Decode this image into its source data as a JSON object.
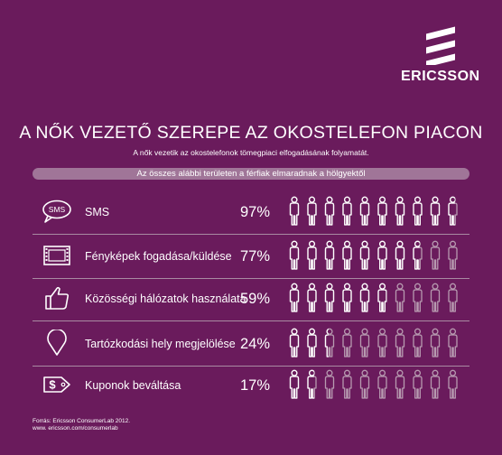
{
  "brand": {
    "name": "ERICSSON"
  },
  "header": {
    "title": "A NŐK VEZETŐ SZEREPE AZ OKOSTELEFON PIACON",
    "subtitle": "A nők vezetik az okostelefonok tömegpiaci elfogadásának folyamatát.",
    "band_text": "Az összes alábbi területen a férfiak elmaradnak a hölgyektől"
  },
  "rows": [
    {
      "icon": "sms-bubble-icon",
      "sms_text": "SMS",
      "label": "SMS",
      "percent": "97%",
      "filled": 9.7
    },
    {
      "icon": "film-strip-icon",
      "label": "Fényképek fogadása/küldése",
      "percent": "77%",
      "filled": 7.7
    },
    {
      "icon": "thumbs-up-icon",
      "label": "Közösségi hálózatok használata",
      "percent": "59%",
      "filled": 5.9
    },
    {
      "icon": "location-pin-icon",
      "label": "Tartózkodási hely megjelölése",
      "percent": "24%",
      "filled": 2.4
    },
    {
      "icon": "coupon-tag-icon",
      "label": "Kuponok beváltása",
      "percent": "17%",
      "filled": 1.7
    }
  ],
  "people_per_row": 10,
  "footer": {
    "source_line1": "Forrás: Ericsson ConsumerLab 2012.",
    "source_line2": "www. ericsson.com/consumerlab"
  },
  "colors": {
    "background": "#6a1b5c",
    "band": "#a07598",
    "empty_person": "#b79ab0",
    "foreground": "#ffffff"
  }
}
